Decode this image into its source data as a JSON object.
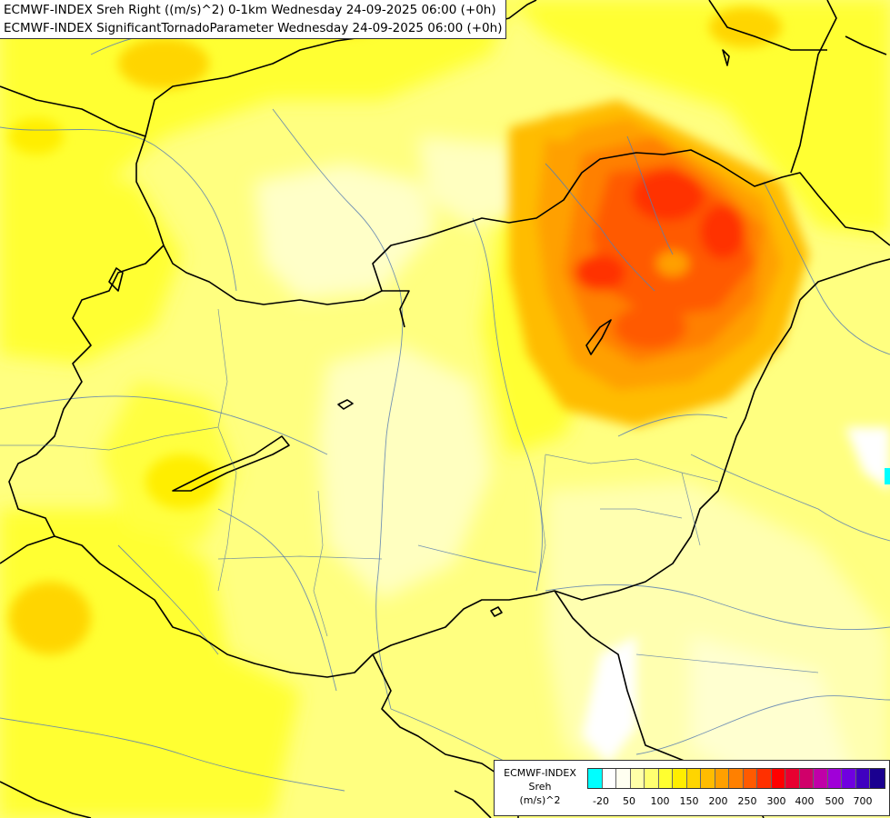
{
  "title_lines": [
    "ECMWF-INDEX Sreh Right ((m/s)^2) 0-1km Wednesday 24-09-2025 06:00 (+0h)",
    "ECMWF-INDEX SignificantTornadoParameter Wednesday 24-09-2025 06:00 (+0h)"
  ],
  "legend": {
    "line1": "ECMWF-INDEX",
    "line2": "Sreh",
    "line3": "(m/s)^2",
    "colors": [
      "#00ffff",
      "#ffffff",
      "#fffff0",
      "#ffffa8",
      "#ffff70",
      "#ffff30",
      "#ffee00",
      "#ffd500",
      "#ffbc00",
      "#ffa000",
      "#ff8000",
      "#ff5a00",
      "#ff3000",
      "#ff0000",
      "#e80030",
      "#d0006a",
      "#c000a8",
      "#a000d8",
      "#7000e0",
      "#4000c0",
      "#1a0090"
    ],
    "ticks": [
      "-20",
      "50",
      "100",
      "150",
      "200",
      "250",
      "300",
      "400",
      "500",
      "700"
    ]
  }
}
